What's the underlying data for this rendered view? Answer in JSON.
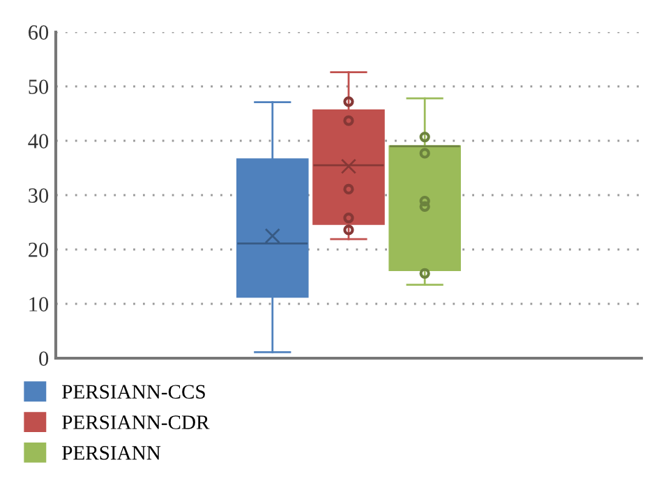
{
  "chart_data": {
    "type": "box",
    "categories": [
      null
    ],
    "series": [
      {
        "name": "PERSIANN-CCS",
        "color": "#4f81bd",
        "boxes": [
          {
            "low": 1.1,
            "q1": 11.3,
            "median": 21.1,
            "q3": 36.6,
            "high": 47.1,
            "mean": 22.5
          }
        ]
      },
      {
        "name": "PERSIANN-CDR",
        "color": "#c0504d",
        "boxes": [
          {
            "low": 21.9,
            "q1": 24.7,
            "median": 35.5,
            "q3": 45.6,
            "high": 52.6,
            "mean": 35.3,
            "outliers": [
              47.2,
              43.7,
              31.1,
              25.8,
              23.6
            ]
          }
        ]
      },
      {
        "name": "PERSIANN",
        "color": "#9bbb59",
        "boxes": [
          {
            "low": 13.5,
            "q1": 16.2,
            "median": 39.0,
            "q3": 39.0,
            "high": 47.8,
            "outliers": [
              40.7,
              37.7,
              28.9,
              27.9,
              15.6
            ]
          }
        ]
      }
    ],
    "ylim": [
      0,
      60
    ],
    "yticks": [
      0,
      10,
      20,
      30,
      40,
      50,
      60
    ],
    "grid": "y",
    "legend": "bottom left"
  }
}
